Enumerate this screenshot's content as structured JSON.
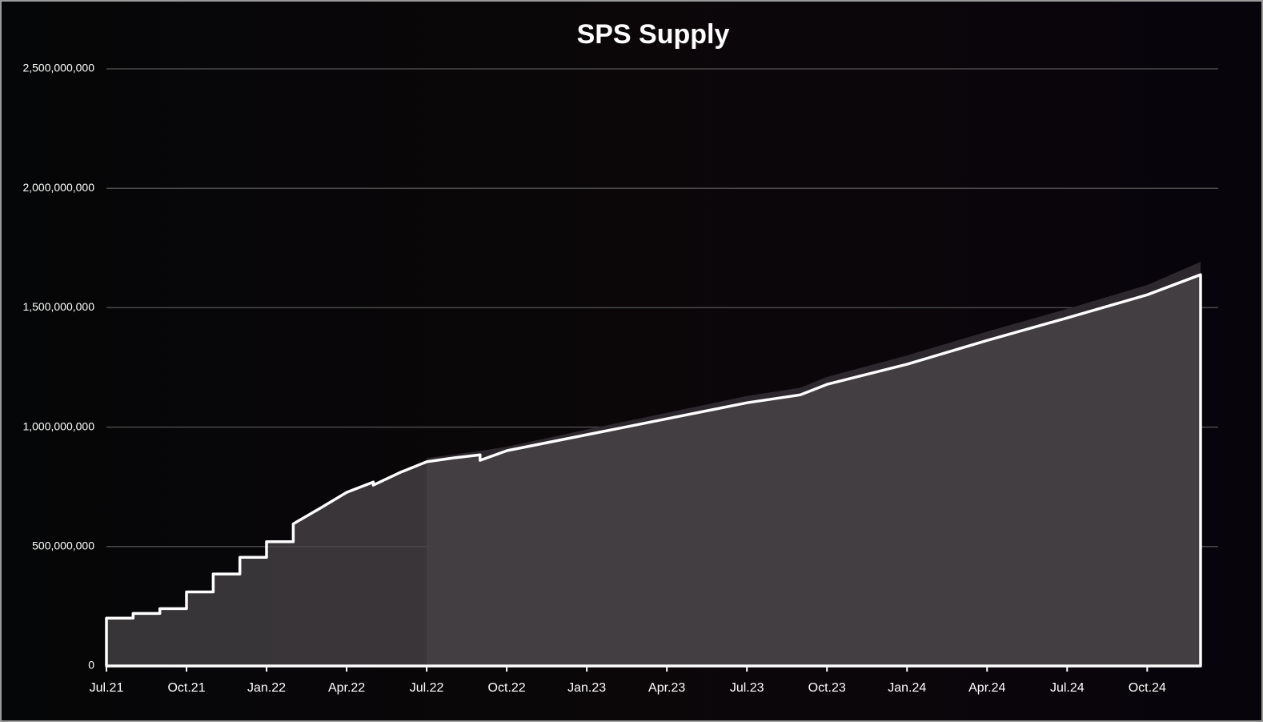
{
  "chart_data": {
    "type": "area",
    "title": "SPS Supply",
    "x": [
      "2021-07",
      "2021-08",
      "2021-08",
      "2021-09",
      "2021-09",
      "2021-10",
      "2021-10",
      "2021-11",
      "2021-11",
      "2021-12",
      "2021-12",
      "2022-01",
      "2022-01",
      "2022-02",
      "2022-02",
      "2022-03",
      "2022-04",
      "2022-05",
      "2022-05",
      "2022-06",
      "2022-07",
      "2022-08",
      "2022-09",
      "2022-09",
      "2022-10",
      "2023-01",
      "2023-04",
      "2023-07",
      "2023-09",
      "2023-10",
      "2024-01",
      "2024-04",
      "2024-07",
      "2024-10",
      "2024-12"
    ],
    "series": [
      {
        "color": "#2c282d",
        "values": [
          null,
          null,
          null,
          null,
          null,
          null,
          null,
          null,
          null,
          null,
          null,
          null,
          null,
          null,
          null,
          null,
          null,
          null,
          null,
          null,
          870000000,
          885000000,
          900000000,
          900000000,
          918000000,
          990000000,
          1060000000,
          1130000000,
          1165000000,
          1210000000,
          1300000000,
          1400000000,
          1495000000,
          1595000000,
          1692000000
        ]
      },
      {
        "color": "#ffffff",
        "values": [
          200000000,
          200000000,
          220000000,
          220000000,
          240000000,
          240000000,
          310000000,
          310000000,
          385000000,
          385000000,
          455000000,
          455000000,
          520000000,
          520000000,
          595000000,
          660000000,
          727000000,
          770000000,
          757000000,
          810000000,
          855000000,
          871000000,
          884000000,
          861000000,
          901000000,
          968000000,
          1035000000,
          1102000000,
          1135000000,
          1179000000,
          1263000000,
          1363000000,
          1457000000,
          1554000000,
          1638000000
        ]
      }
    ],
    "xlim": [
      "2021-07",
      "2024-12"
    ],
    "xticks": [
      {
        "value": "2021-07",
        "label": "Jul.21"
      },
      {
        "value": "2021-10",
        "label": "Oct.21"
      },
      {
        "value": "2022-01",
        "label": "Jan.22"
      },
      {
        "value": "2022-04",
        "label": "Apr.22"
      },
      {
        "value": "2022-07",
        "label": "Jul.22"
      },
      {
        "value": "2022-10",
        "label": "Oct.22"
      },
      {
        "value": "2023-01",
        "label": "Jan.23"
      },
      {
        "value": "2023-04",
        "label": "Apr.23"
      },
      {
        "value": "2023-07",
        "label": "Jul.23"
      },
      {
        "value": "2023-10",
        "label": "Oct.23"
      },
      {
        "value": "2024-01",
        "label": "Jan.24"
      },
      {
        "value": "2024-04",
        "label": "Apr.24"
      },
      {
        "value": "2024-07",
        "label": "Jul.24"
      },
      {
        "value": "2024-10",
        "label": "Oct.24"
      }
    ],
    "ylim": [
      0,
      2500000000
    ],
    "yticks": [
      0,
      {
        "value": 500000000,
        "label": "500,000,000"
      },
      {
        "value": 1000000000,
        "label": "1,000,000,000"
      },
      {
        "value": 1500000000,
        "label": "1,500,000,000"
      },
      {
        "value": 2000000000,
        "label": "2,000,000,000"
      },
      {
        "value": 2500000000,
        "label": "2,500,000,000"
      }
    ],
    "grid": true
  }
}
